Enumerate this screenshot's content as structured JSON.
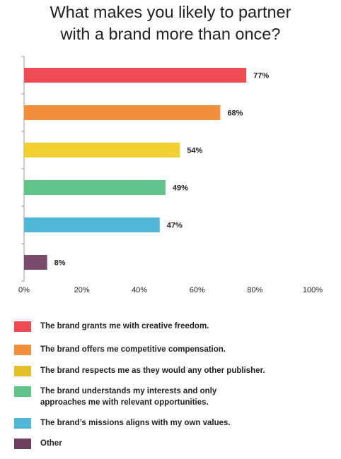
{
  "title": {
    "line1": "What makes you likely to partner",
    "line2": "with a brand more than once?"
  },
  "chart_data": {
    "type": "bar",
    "orientation": "horizontal",
    "title": "What makes you likely to partner with a brand more than once?",
    "categories": [
      "The brand grants me with creative freedom.",
      "The brand offers me competitive compensation.",
      "The brand respects me as they would any other publisher.",
      "The brand understands my interests and only approaches me with relevant opportunities.",
      "The brand's missions aligns with my own values.",
      "Other"
    ],
    "values": [
      77,
      68,
      54,
      49,
      47,
      8
    ],
    "value_labels": [
      "77%",
      "68%",
      "54%",
      "49%",
      "47%",
      "8%"
    ],
    "colors": [
      "#ee4b55",
      "#f28f3b",
      "#f2d02f",
      "#5ec48a",
      "#4fb8d6",
      "#7a4a6c"
    ],
    "xlim": [
      0,
      100
    ],
    "x_ticks": [
      0,
      20,
      40,
      60,
      80,
      100
    ],
    "x_tick_labels": [
      "0%",
      "20%",
      "40%",
      "60%",
      "80%",
      "100%"
    ],
    "xlabel": "",
    "ylabel": "",
    "grid": false,
    "legend_position": "bottom"
  },
  "legend": [
    {
      "text": "The brand grants me with creative freedom.",
      "color": "#ee4b55"
    },
    {
      "text": "The brand offers me competitive compensation.",
      "color": "#f28f3b"
    },
    {
      "text": "The brand respects me as they would any other publisher.",
      "color": "#e2c02a"
    },
    {
      "text": "The brand understands my interests and only approaches me with relevant opportunities.",
      "color": "#5ec48a"
    },
    {
      "text": "The brand’s missions aligns with my own values.",
      "color": "#4fb8d6"
    },
    {
      "text": "Other",
      "color": "#6e3f5e"
    }
  ]
}
